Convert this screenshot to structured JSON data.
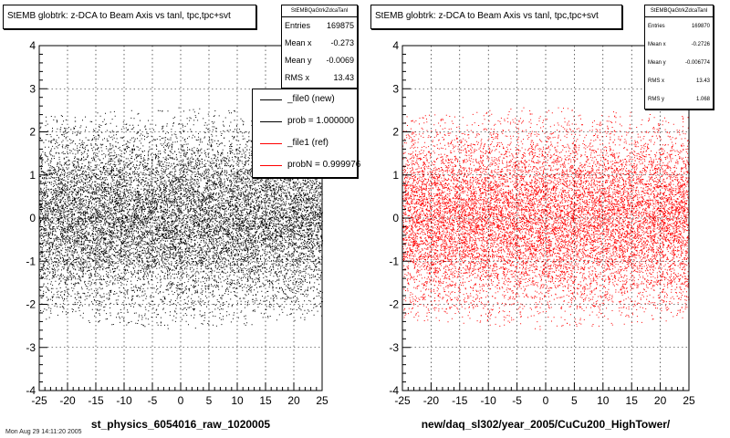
{
  "chart_data": [
    {
      "type": "scatter",
      "title": "StEMB globtrk: z-DCA to Beam Axis vs tanl, tpc,tpc+svt",
      "xlabel": "st_physics_6054016_raw_1020005",
      "ylabel": "",
      "xlim": [
        -25,
        25
      ],
      "ylim": [
        -4,
        4
      ],
      "xticks": [
        "-25",
        "-20",
        "-15",
        "-10",
        "-5",
        "0",
        "5",
        "10",
        "15",
        "20",
        "25"
      ],
      "yticks": [
        "-4",
        "-3",
        "-2",
        "-1",
        "0",
        "1",
        "2",
        "3",
        "4"
      ],
      "grid": true,
      "color": "#000000",
      "stats": {
        "name": "StEMBQaGtrkZdcaTanl",
        "rows": [
          {
            "label": "Entries",
            "value": "169875"
          },
          {
            "label": "Mean x",
            "value": "-0.273"
          },
          {
            "label": "Mean y",
            "value": "-0.0069"
          },
          {
            "label": "RMS x",
            "value": "13.43"
          }
        ]
      },
      "legend": {
        "placement": "top-right",
        "entries": [
          {
            "label": "_file0 (new)",
            "color": "#000000"
          },
          {
            "label": "prob = 1.000000",
            "color": "#000000"
          },
          {
            "label": "_file1 (ref)",
            "color": "#ff0000"
          },
          {
            "label": "probN = 0.999976",
            "color": "#ff0000"
          }
        ]
      },
      "distribution": {
        "x_range": [
          -25,
          25
        ],
        "y_mean": 0,
        "y_rms": 1.07,
        "y_cut": 2.6
      }
    },
    {
      "type": "scatter",
      "title": "StEMB globtrk: z-DCA to Beam Axis vs tanl, tpc,tpc+svt",
      "xlabel": "new/daq_sl302/year_2005/CuCu200_HighTower/",
      "ylabel": "",
      "xlim": [
        -25,
        25
      ],
      "ylim": [
        -4,
        4
      ],
      "xticks": [
        "-25",
        "-20",
        "-15",
        "-10",
        "-5",
        "0",
        "5",
        "10",
        "15",
        "20",
        "25"
      ],
      "yticks": [
        "-4",
        "-3",
        "-2",
        "-1",
        "0",
        "1",
        "2",
        "3",
        "4"
      ],
      "grid": true,
      "color": "#ff0000",
      "stats": {
        "name": "StEMBQaGtrkZdcaTanl",
        "rows": [
          {
            "label": "Entries",
            "value": "169870"
          },
          {
            "label": "Mean x",
            "value": "-0.2726"
          },
          {
            "label": "Mean y",
            "value": "-0.006774"
          },
          {
            "label": "RMS x",
            "value": "13.43"
          },
          {
            "label": "RMS y",
            "value": "1.068"
          }
        ]
      },
      "distribution": {
        "x_range": [
          -25,
          25
        ],
        "y_mean": 0,
        "y_rms": 1.068,
        "y_cut": 2.6
      }
    }
  ],
  "footer_note": "Mon Aug 29 14:11:20 2005"
}
